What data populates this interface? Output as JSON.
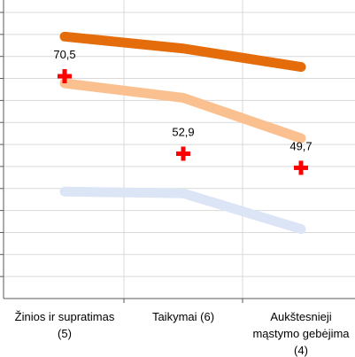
{
  "chart_data": {
    "type": "line",
    "categories": [
      [
        "Žinios ir supratimas",
        "(5)"
      ],
      [
        "Taikymai (6)"
      ],
      [
        "Aukštesnieji",
        "mąstymo gebėjima",
        "(4)"
      ]
    ],
    "series": [
      {
        "values": [
          79.5,
          76.8,
          72.6
        ],
        "color": "#e46c0a",
        "marker": "none",
        "show_labels": false
      },
      {
        "values": [
          68.9,
          65.6,
          56.4
        ],
        "color": "#fac090",
        "marker": "none",
        "show_labels": false
      },
      {
        "values": [
          70.5,
          52.9,
          49.7
        ],
        "color": "#ff0000",
        "marker": "cross",
        "show_labels": true
      },
      {
        "values": [
          44.3,
          43.9,
          35.8
        ],
        "color": "#dbe5f6",
        "marker": "none",
        "show_labels": false
      }
    ],
    "ylim": [
      20,
      85
    ],
    "grid": true,
    "legend": "none"
  }
}
